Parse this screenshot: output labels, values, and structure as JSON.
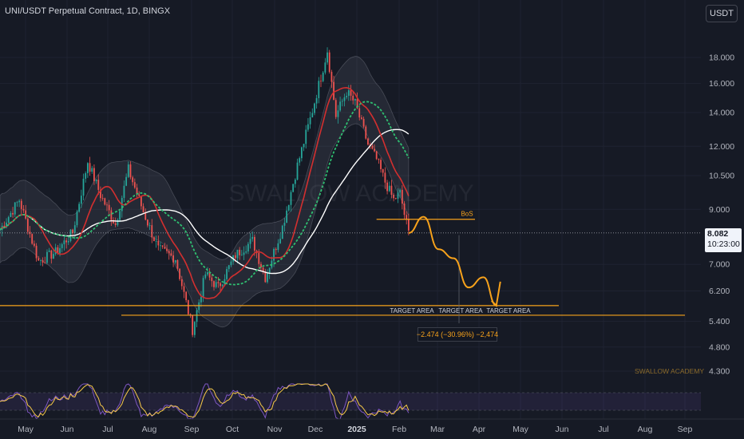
{
  "header": {
    "title": "UNI/USDT Perpetual Contract, 1D, BINGX",
    "currency_button": "USDT"
  },
  "price_tag": {
    "price": "8.082",
    "countdown": "10:23:00"
  },
  "watermark": {
    "center": "SWALLOW ACADEMY",
    "corner": "SWALLOW ACADEMY"
  },
  "annotations": {
    "bos": "BoS",
    "target_areas": [
      "TARGET AREA",
      "TARGET AREA",
      "TARGET AREA"
    ],
    "measure": "−2.474 (−30.96%) −2,474"
  },
  "colors": {
    "background": "#161a25",
    "up_candle": "#26a69a",
    "down_candle": "#ef5350",
    "annotation": "#f7a21b",
    "ma_red": "#d32f2f",
    "ma_white": "#ffffff",
    "ma_green": "#2fbf71"
  },
  "chart_data": {
    "type": "candlestick",
    "price_axis": {
      "scale": "log",
      "ticks": [
        18.0,
        16.0,
        14.0,
        12.0,
        10.5,
        9.0,
        7.0,
        6.2,
        5.4,
        4.8,
        4.3
      ],
      "tick_labels": [
        "18.000",
        "16.000",
        "14.000",
        "12.000",
        "10.500",
        "9.000",
        "7.000",
        "6.200",
        "5.400",
        "4.800",
        "4.300"
      ]
    },
    "time_axis": {
      "labels": [
        "May",
        "Jun",
        "Jul",
        "Aug",
        "Sep",
        "Oct",
        "Nov",
        "Dec",
        "2025",
        "Feb",
        "Mar",
        "Apr",
        "May",
        "Jun",
        "Jul",
        "Aug",
        "Sep"
      ],
      "highlight": "2025"
    },
    "last_price": 8.082,
    "bos_level": 8.6,
    "target_levels": [
      5.8,
      5.55
    ],
    "measure_change": -2.474,
    "measure_percent": -30.96,
    "series_path": [
      [
        0,
        8.2
      ],
      [
        9,
        9.4
      ],
      [
        18,
        7.1
      ],
      [
        26,
        7.4
      ],
      [
        34,
        8.1
      ],
      [
        41,
        11.2
      ],
      [
        47,
        9.6
      ],
      [
        54,
        8.4
      ],
      [
        60,
        10.8
      ],
      [
        67,
        8.9
      ],
      [
        74,
        7.5
      ],
      [
        82,
        7.2
      ],
      [
        90,
        5.2
      ],
      [
        96,
        6.7
      ],
      [
        102,
        6.3
      ],
      [
        110,
        7.3
      ],
      [
        118,
        7.8
      ],
      [
        124,
        6.6
      ],
      [
        132,
        8.3
      ],
      [
        139,
        11.0
      ],
      [
        145,
        13.6
      ],
      [
        150,
        16.5
      ],
      [
        153,
        18.6
      ],
      [
        157,
        13.8
      ],
      [
        162,
        15.4
      ],
      [
        166,
        14.6
      ],
      [
        172,
        12.1
      ],
      [
        176,
        11.3
      ],
      [
        180,
        10.2
      ],
      [
        184,
        9.4
      ],
      [
        187,
        9.7
      ],
      [
        189,
        8.8
      ],
      [
        191,
        8.08
      ]
    ],
    "projection_path": [
      [
        191,
        8.08
      ],
      [
        198,
        8.7
      ],
      [
        205,
        7.5
      ],
      [
        212,
        7.2
      ],
      [
        219,
        6.3
      ],
      [
        226,
        6.6
      ],
      [
        232,
        5.8
      ]
    ]
  }
}
